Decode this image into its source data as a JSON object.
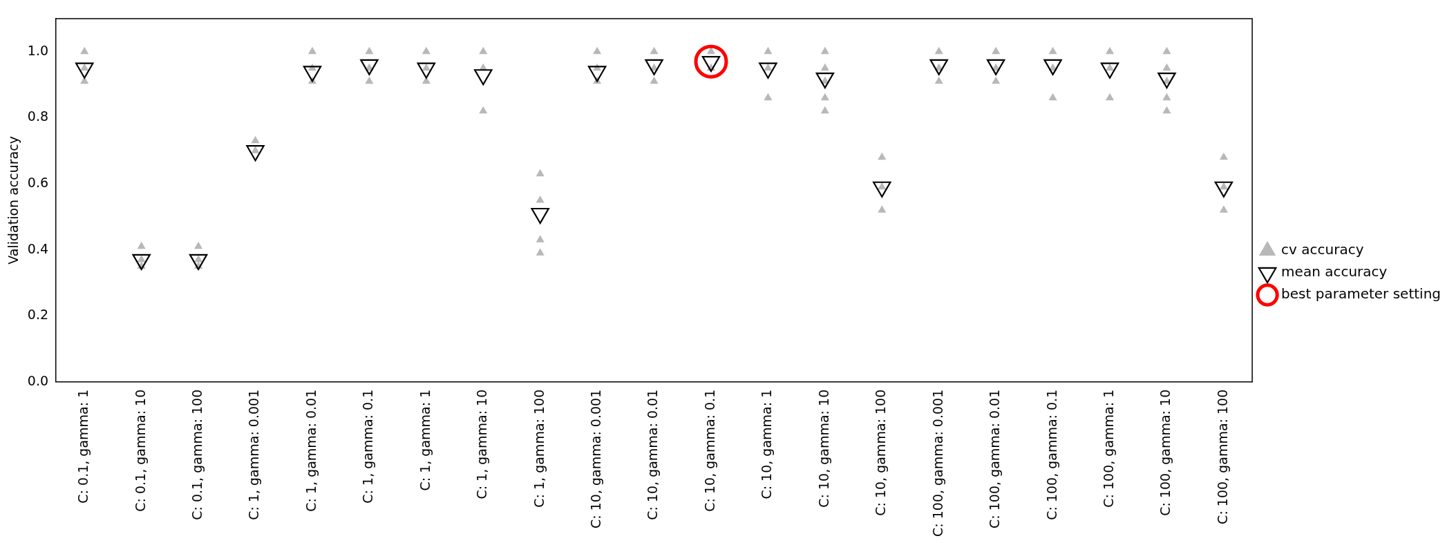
{
  "chart_data": {
    "type": "scatter",
    "ylabel": "Validation accuracy",
    "categories": [
      "C: 0.1, gamma: 1",
      "C: 0.1, gamma: 10",
      "C: 0.1, gamma: 100",
      "C: 1, gamma: 0.001",
      "C: 1, gamma: 0.01",
      "C: 1, gamma: 0.1",
      "C: 1, gamma: 1",
      "C: 1, gamma: 10",
      "C: 1, gamma: 100",
      "C: 10, gamma: 0.001",
      "C: 10, gamma: 0.01",
      "C: 10, gamma: 0.1",
      "C: 10, gamma: 1",
      "C: 10, gamma: 10",
      "C: 10, gamma: 100",
      "C: 100, gamma: 0.001",
      "C: 100, gamma: 0.01",
      "C: 100, gamma: 0.1",
      "C: 100, gamma: 1",
      "C: 100, gamma: 10",
      "C: 100, gamma: 100"
    ],
    "series": [
      {
        "name": "cv accuracy",
        "color": "#a6a6a6",
        "marker": "triangle",
        "x": [
          "C: 0.1, gamma: 1",
          "C: 0.1, gamma: 1",
          "C: 0.1, gamma: 1",
          "C: 0.1, gamma: 10",
          "C: 0.1, gamma: 10",
          "C: 0.1, gamma: 10",
          "C: 0.1, gamma: 100",
          "C: 0.1, gamma: 100",
          "C: 0.1, gamma: 100",
          "C: 1, gamma: 0.001",
          "C: 1, gamma: 0.001",
          "C: 1, gamma: 0.01",
          "C: 1, gamma: 0.01",
          "C: 1, gamma: 0.01",
          "C: 1, gamma: 0.1",
          "C: 1, gamma: 0.1",
          "C: 1, gamma: 0.1",
          "C: 1, gamma: 1",
          "C: 1, gamma: 1",
          "C: 1, gamma: 1",
          "C: 1, gamma: 10",
          "C: 1, gamma: 10",
          "C: 1, gamma: 10",
          "C: 1, gamma: 100",
          "C: 1, gamma: 100",
          "C: 1, gamma: 100",
          "C: 1, gamma: 100",
          "C: 10, gamma: 0.001",
          "C: 10, gamma: 0.001",
          "C: 10, gamma: 0.001",
          "C: 10, gamma: 0.01",
          "C: 10, gamma: 0.01",
          "C: 10, gamma: 0.01",
          "C: 10, gamma: 0.1",
          "C: 10, gamma: 0.1",
          "C: 10, gamma: 1",
          "C: 10, gamma: 1",
          "C: 10, gamma: 1",
          "C: 10, gamma: 10",
          "C: 10, gamma: 10",
          "C: 10, gamma: 10",
          "C: 10, gamma: 10",
          "C: 10, gamma: 10",
          "C: 10, gamma: 100",
          "C: 10, gamma: 100",
          "C: 10, gamma: 100",
          "C: 100, gamma: 0.001",
          "C: 100, gamma: 0.001",
          "C: 100, gamma: 0.001",
          "C: 100, gamma: 0.01",
          "C: 100, gamma: 0.01",
          "C: 100, gamma: 0.01",
          "C: 100, gamma: 0.1",
          "C: 100, gamma: 0.1",
          "C: 100, gamma: 0.1",
          "C: 100, gamma: 1",
          "C: 100, gamma: 1",
          "C: 100, gamma: 1",
          "C: 100, gamma: 10",
          "C: 100, gamma: 10",
          "C: 100, gamma: 10",
          "C: 100, gamma: 10",
          "C: 100, gamma: 10",
          "C: 100, gamma: 100",
          "C: 100, gamma: 100",
          "C: 100, gamma: 100"
        ],
        "values": [
          1.0,
          0.95,
          0.91,
          0.41,
          0.37,
          0.35,
          0.41,
          0.37,
          0.35,
          0.73,
          0.7,
          1.0,
          0.95,
          0.91,
          1.0,
          0.95,
          0.91,
          1.0,
          0.95,
          0.91,
          1.0,
          0.95,
          0.82,
          0.63,
          0.55,
          0.43,
          0.39,
          1.0,
          0.95,
          0.91,
          1.0,
          0.95,
          0.91,
          1.0,
          0.95,
          1.0,
          0.95,
          0.86,
          1.0,
          0.95,
          0.91,
          0.86,
          0.82,
          0.68,
          0.59,
          0.52,
          1.0,
          0.95,
          0.91,
          1.0,
          0.95,
          0.91,
          1.0,
          0.95,
          0.86,
          1.0,
          0.95,
          0.86,
          1.0,
          0.95,
          0.91,
          0.86,
          0.82,
          0.68,
          0.59,
          0.52
        ]
      },
      {
        "name": "mean accuracy",
        "color": "#000000",
        "marker": "triangle",
        "x": [
          "C: 0.1, gamma: 1",
          "C: 0.1, gamma: 10",
          "C: 0.1, gamma: 100",
          "C: 1, gamma: 0.001",
          "C: 1, gamma: 0.01",
          "C: 1, gamma: 0.1",
          "C: 1, gamma: 1",
          "C: 1, gamma: 10",
          "C: 1, gamma: 100",
          "C: 10, gamma: 0.001",
          "C: 10, gamma: 0.01",
          "C: 10, gamma: 0.1",
          "C: 10, gamma: 1",
          "C: 10, gamma: 10",
          "C: 10, gamma: 100",
          "C: 100, gamma: 0.001",
          "C: 100, gamma: 0.01",
          "C: 100, gamma: 0.1",
          "C: 100, gamma: 1",
          "C: 100, gamma: 10",
          "C: 100, gamma: 100"
        ],
        "values": [
          0.95,
          0.37,
          0.37,
          0.7,
          0.94,
          0.96,
          0.95,
          0.93,
          0.51,
          0.94,
          0.96,
          0.97,
          0.95,
          0.92,
          0.59,
          0.96,
          0.96,
          0.96,
          0.95,
          0.92,
          0.59
        ]
      },
      {
        "name": "best parameter setting",
        "color": "#ff0000",
        "marker": "circle",
        "x": [
          "C: 10, gamma: 0.1"
        ],
        "values": [
          0.97
        ]
      }
    ],
    "ylim": [
      0,
      1.1
    ],
    "yticks": [
      {
        "value": 0,
        "label": "0.0"
      },
      0.2,
      0.4,
      0.6,
      0.8,
      {
        "value": 1,
        "label": "1.0"
      }
    ],
    "grid": false,
    "legend": "right"
  }
}
